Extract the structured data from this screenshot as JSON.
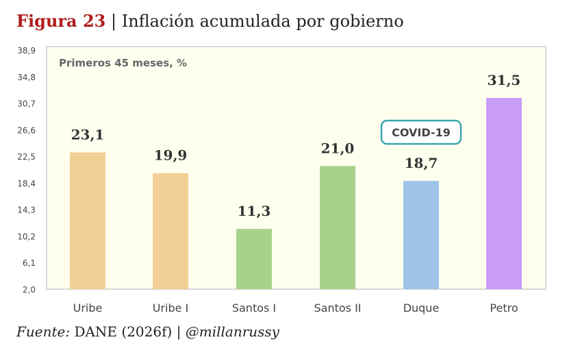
{
  "header": {
    "figure_label": "Figura 23",
    "separator": "|",
    "title": "Inflación acumulada por gobierno"
  },
  "chart_data": {
    "type": "bar",
    "subtitle": "Primeros 45 meses, %",
    "categories": [
      "Uribe",
      "Uribe I",
      "Santos I",
      "Santos II",
      "Duque",
      "Petro"
    ],
    "values": [
      23.1,
      19.9,
      11.3,
      21.0,
      18.7,
      31.5
    ],
    "value_labels": [
      "23,1",
      "19,9",
      "11,3",
      "21,0",
      "18,7",
      "31,5"
    ],
    "colors": [
      "#f1cf95",
      "#f1cf95",
      "#a8d28b",
      "#a8d28b",
      "#9ec4e8",
      "#c99cf5"
    ],
    "yticks": [
      "38,9",
      "34,8",
      "30,7",
      "26,6",
      "22,5",
      "18,4",
      "14,3",
      "10,2",
      "6,1",
      "2,0"
    ],
    "ylim": [
      2.0,
      38.9
    ],
    "grid": false,
    "annotation": {
      "text": "COVID-19",
      "near_category": "Duque",
      "border_color": "#3aa6b0"
    },
    "plot_background": "#fffff0"
  },
  "source": {
    "label": "Fuente:",
    "text": " DANE (2026f) | ",
    "handle": "@millanrussy"
  }
}
